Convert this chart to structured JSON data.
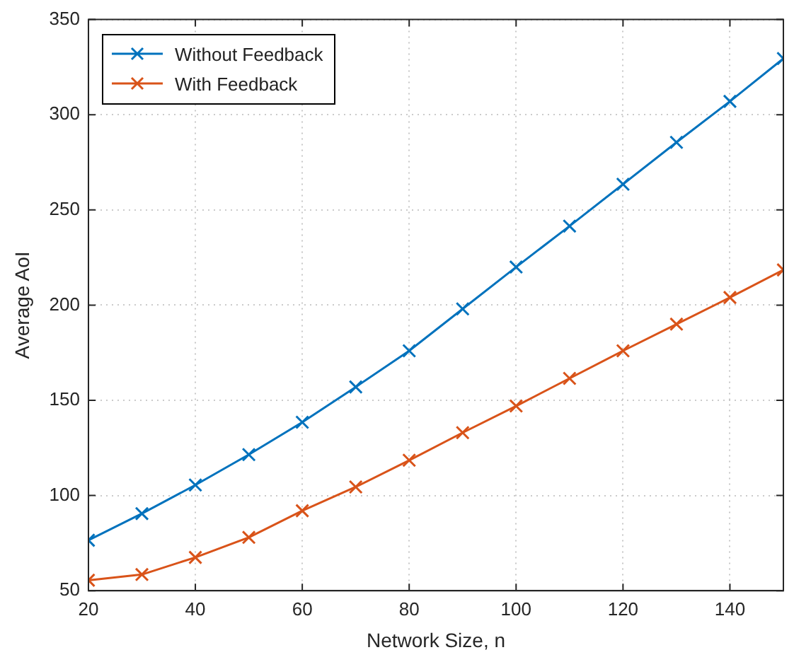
{
  "chart_data": {
    "type": "line",
    "xlabel": "Network Size, n",
    "ylabel": "Average AoI",
    "x": [
      20,
      30,
      40,
      50,
      60,
      70,
      80,
      90,
      100,
      110,
      120,
      130,
      140,
      150
    ],
    "xlim": [
      20,
      150
    ],
    "xticks": [
      20,
      40,
      60,
      80,
      100,
      120,
      140
    ],
    "ylim": [
      50,
      350
    ],
    "yticks": [
      50,
      100,
      150,
      200,
      250,
      300,
      350
    ],
    "grid": true,
    "legend": "top left",
    "marker": "cross",
    "line_style": "solid",
    "series": [
      {
        "name": "Without Feedback",
        "color": "#0072bd",
        "values": [
          76.5,
          90.5,
          105.5,
          121.5,
          138.5,
          157,
          176,
          198,
          220,
          241.5,
          263.5,
          285.5,
          307,
          329.5
        ]
      },
      {
        "name": "With Feedback",
        "color": "#d95319",
        "values": [
          55.5,
          58.5,
          67.5,
          78,
          92,
          104.5,
          118.5,
          133,
          147,
          161.5,
          176,
          190,
          204,
          218.5
        ]
      }
    ]
  }
}
